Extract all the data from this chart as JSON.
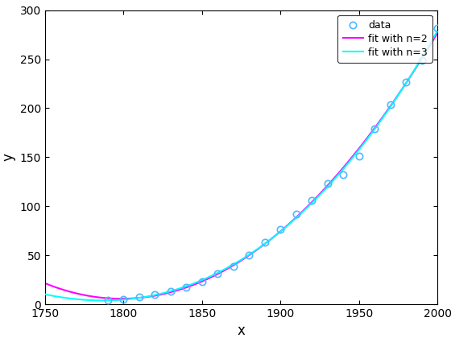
{
  "title": "",
  "xlabel": "x",
  "ylabel": "y",
  "xlim": [
    1750,
    2000
  ],
  "ylim": [
    0,
    300
  ],
  "xticks": [
    1750,
    1800,
    1850,
    1900,
    1950,
    2000
  ],
  "yticks": [
    0,
    50,
    100,
    150,
    200,
    250,
    300
  ],
  "census_years": [
    1790,
    1800,
    1810,
    1820,
    1830,
    1840,
    1850,
    1860,
    1870,
    1880,
    1890,
    1900,
    1910,
    1920,
    1930,
    1940,
    1950,
    1960,
    1970,
    1980,
    1990,
    2000
  ],
  "census_pop": [
    3.9,
    5.3,
    7.2,
    9.6,
    12.9,
    17.1,
    23.2,
    31.4,
    38.6,
    50.2,
    63.0,
    76.2,
    92.2,
    106.0,
    123.2,
    132.2,
    151.3,
    179.3,
    203.3,
    226.5,
    248.7,
    281.4
  ],
  "data_color": "#4db8ff",
  "fit_n2_color": "#ff00ff",
  "fit_n3_color": "#00ffff",
  "legend_labels": [
    "data",
    "fit with n=2",
    "fit with n=3"
  ],
  "bg_color": "#ffffff",
  "marker": "o",
  "marker_size": 6,
  "line_width": 1.5,
  "figwidth": 5.6,
  "figheight": 4.2,
  "dpi": 100
}
